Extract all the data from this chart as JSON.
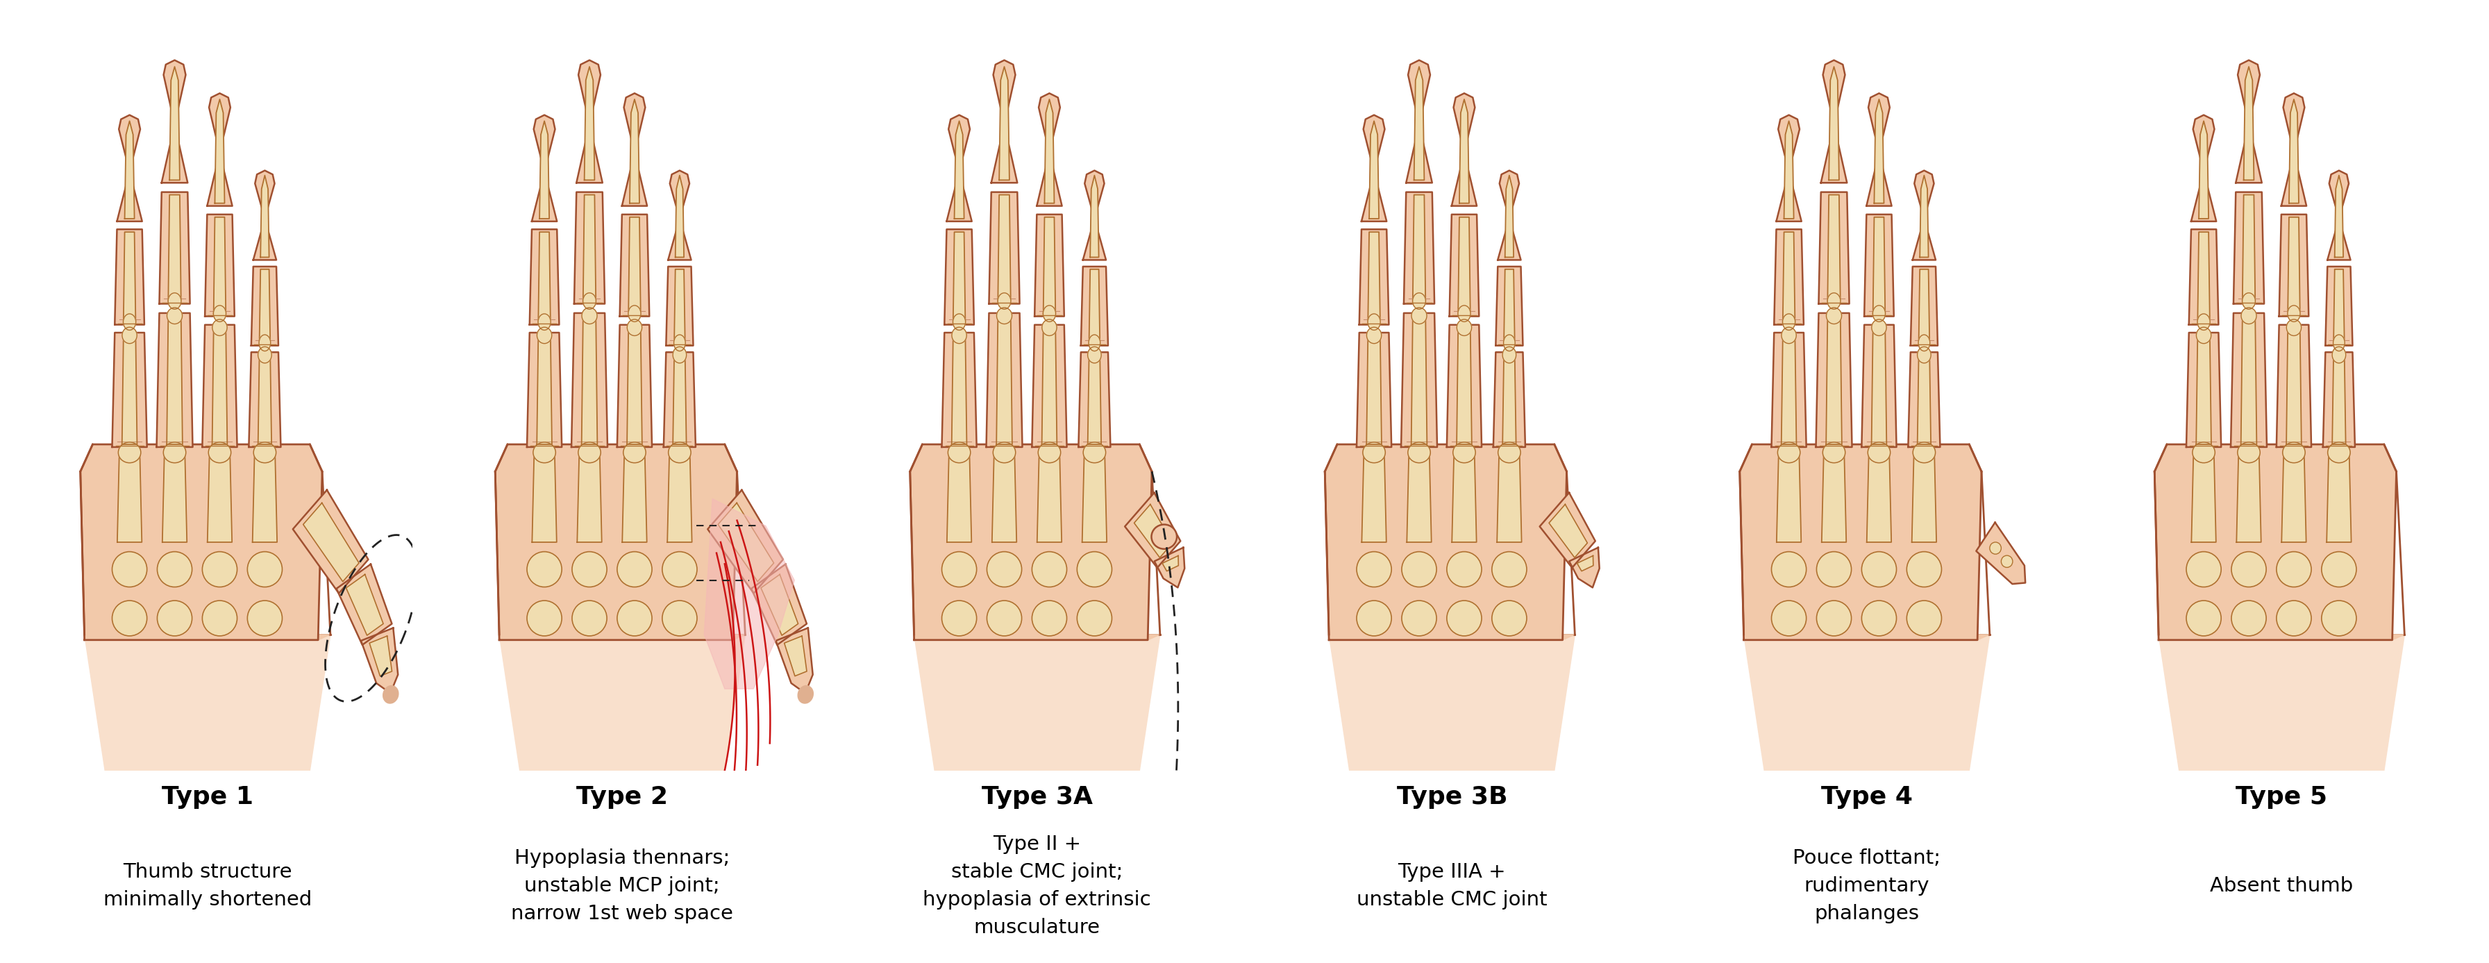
{
  "background_color": "#ffffff",
  "panel_labels": [
    "Type 1",
    "Type 2",
    "Type 3A",
    "Type 3B",
    "Type 4",
    "Type 5"
  ],
  "panel_descriptions": [
    "Thumb structure\nminimally shortened",
    "Hypoplasia thennars;\nunstable MCP joint;\nnarrow 1st web space",
    "Type II +\nstable CMC joint;\nhypoplasia of extrinsic\nmusculature",
    "Type IIIA +\nunstable CMC joint",
    "Pouce flottant;\nrudimentary\nphalanges",
    "Absent thumb"
  ],
  "label_fontsize": 26,
  "desc_fontsize": 21,
  "skin_fill": "#f2c9aa",
  "skin_light": "#f9e0cc",
  "skin_outline": "#a05030",
  "bone_fill": "#f0ddb0",
  "bone_outline": "#b07030",
  "wrist_fill": "#f5d5b8",
  "red_tendon": "#cc1515",
  "red_fill": "#f0a0a0",
  "dashed_color": "#222222",
  "n_panels": 6,
  "fig_width": 35.85,
  "fig_height": 13.87
}
